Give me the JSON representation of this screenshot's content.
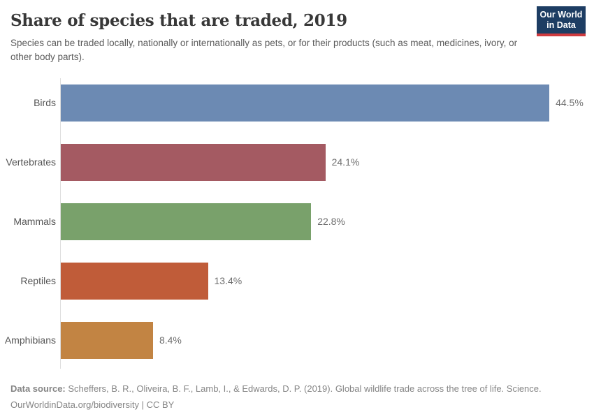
{
  "header": {
    "title": "Share of species that are traded, 2019",
    "subtitle": "Species can be traded locally, nationally or internationally as pets, or for their products (such as meat, medicines, ivory, or other body parts).",
    "logo": {
      "line1": "Our World",
      "line2": "in Data",
      "background_color": "#1d3d63",
      "accent_color": "#cf3a3e"
    }
  },
  "chart_data": {
    "type": "bar",
    "orientation": "horizontal",
    "title": "Share of species that are traded, 2019",
    "categories": [
      "Birds",
      "Vertebrates",
      "Mammals",
      "Reptiles",
      "Amphibians"
    ],
    "values": [
      44.5,
      24.1,
      22.8,
      13.4,
      8.4
    ],
    "value_labels": [
      "44.5%",
      "24.1%",
      "22.8%",
      "13.4%",
      "8.4%"
    ],
    "bar_colors": [
      "#6c8ab3",
      "#a45a62",
      "#79a16b",
      "#c05c39",
      "#c28443"
    ],
    "unit": "%",
    "xlabel": "",
    "ylabel": "",
    "grid": false,
    "legend": "none",
    "x_axis_visible": false,
    "axis_line_color": "#dedede"
  },
  "footer": {
    "datasource_label": "Data source:",
    "datasource_text": "Scheffers, B. R., Oliveira, B. F., Lamb, I., & Edwards, D. P. (2019). Global wildlife trade across the tree of life. Science.",
    "license_line": "OurWorldinData.org/biodiversity | CC BY"
  }
}
